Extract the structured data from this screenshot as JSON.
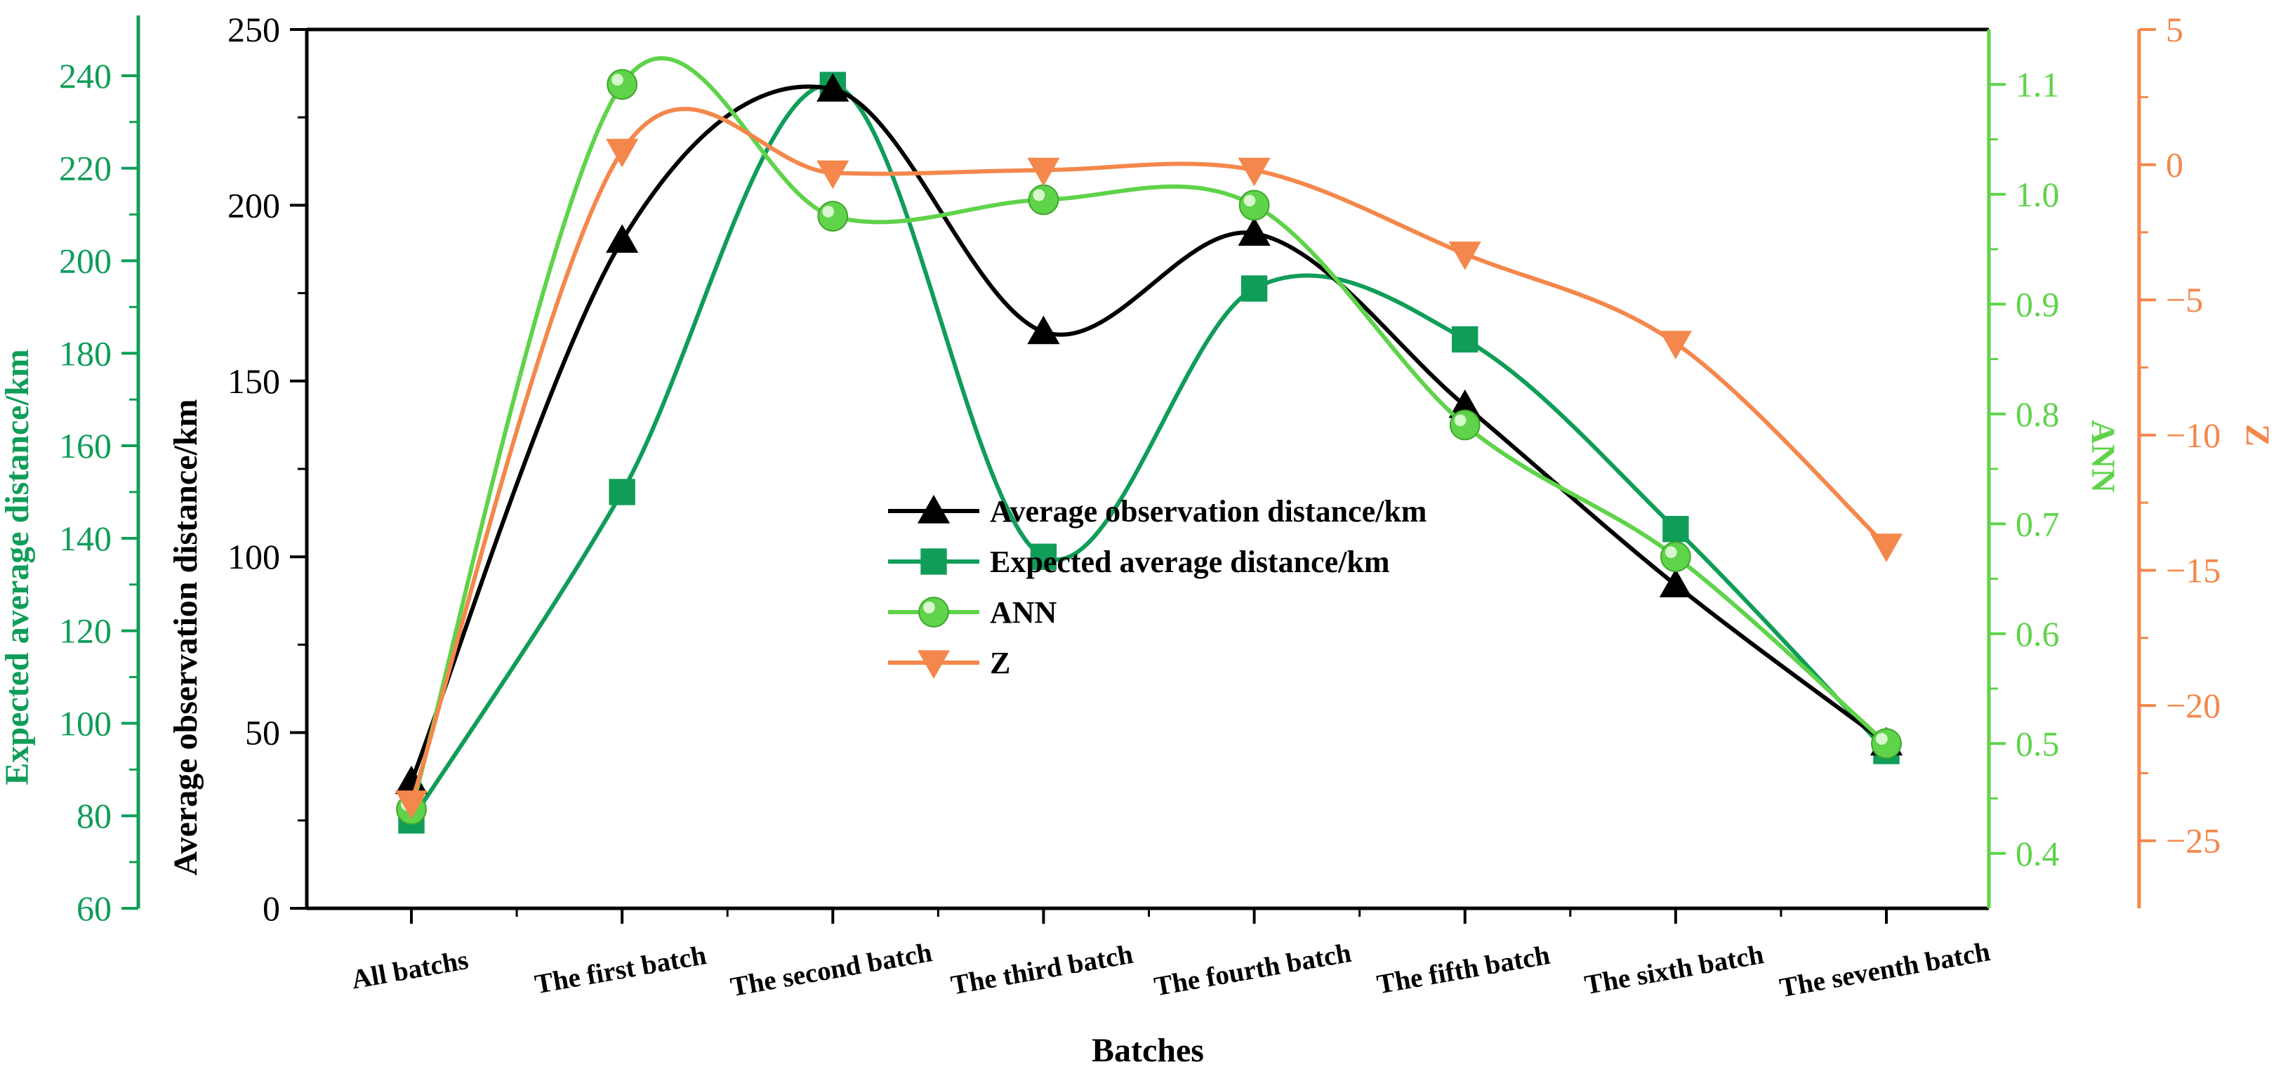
{
  "chart_data": {
    "type": "line",
    "title": "",
    "xlabel": "Batches",
    "categories": [
      "All batchs",
      "The first batch",
      "The second batch",
      "The third batch",
      "The fourth batch",
      "The fifth batch",
      "The sixth batch",
      "The seventh batch"
    ],
    "axes": {
      "left_outer": {
        "label": "Expected average distance/km",
        "ylim": [
          60,
          250
        ],
        "ticks": [
          60,
          80,
          100,
          120,
          140,
          160,
          180,
          200,
          220,
          240
        ],
        "color": "#0f9d58"
      },
      "left_inner": {
        "label": "Average observation distance/km",
        "ylim": [
          0,
          250
        ],
        "ticks": [
          0,
          50,
          100,
          150,
          200,
          250
        ],
        "color": "#000000"
      },
      "right_inner": {
        "label": "ANN",
        "ylim": [
          0.35,
          1.15
        ],
        "ticks": [
          0.4,
          0.5,
          0.6,
          0.7,
          0.8,
          0.9,
          1.0,
          1.1
        ],
        "tick_labels": [
          "0.4",
          "0.5",
          "0.6",
          "0.7",
          "0.8",
          "0.9",
          "1.0",
          "1.1"
        ],
        "color": "#5fd34a"
      },
      "right_outer": {
        "label": "Z",
        "ylim": [
          -27.5,
          5
        ],
        "ticks": [
          -25,
          -20,
          -15,
          -10,
          -5,
          0,
          5
        ],
        "tick_labels": [
          "−25",
          "−20",
          "−15",
          "−10",
          "−5",
          "0",
          "5"
        ],
        "color": "#f4874b"
      }
    },
    "series": [
      {
        "name": "Average observation distance/km",
        "axis": "left_inner",
        "marker": "triangle-up",
        "color": "#000000",
        "values": [
          36,
          190,
          233,
          164,
          192,
          143,
          92,
          47
        ]
      },
      {
        "name": "Expected average distance/km",
        "axis": "left_outer",
        "marker": "square",
        "color": "#0f9d58",
        "values": [
          79,
          150,
          238,
          136,
          194,
          183,
          142,
          94
        ]
      },
      {
        "name": "ANN",
        "axis": "right_inner",
        "marker": "circle",
        "color": "#5fd34a",
        "values": [
          0.44,
          1.1,
          0.98,
          0.995,
          0.99,
          0.79,
          0.67,
          0.5
        ]
      },
      {
        "name": "Z",
        "axis": "right_outer",
        "marker": "triangle-down",
        "color": "#f4874b",
        "values": [
          -23.6,
          0.5,
          -0.3,
          -0.2,
          -0.2,
          -3.3,
          -6.6,
          -14.1
        ]
      }
    ],
    "legend_position": "center"
  }
}
